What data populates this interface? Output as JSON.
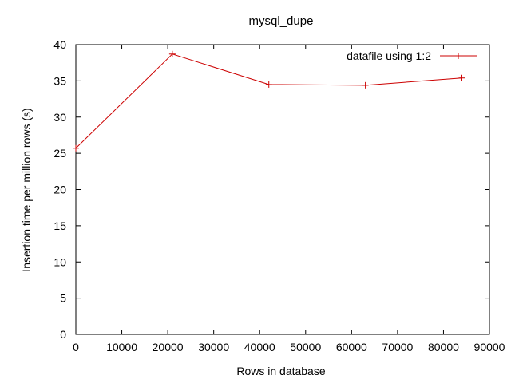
{
  "chart_data": {
    "type": "line",
    "title": "mysql_dupe",
    "xlabel": "Rows in database",
    "ylabel": "Insertion time per million rows (s)",
    "xlim": [
      0,
      90000
    ],
    "ylim": [
      0,
      40
    ],
    "xticks": [
      0,
      10000,
      20000,
      30000,
      40000,
      50000,
      60000,
      70000,
      80000,
      90000
    ],
    "yticks": [
      0,
      5,
      10,
      15,
      20,
      25,
      30,
      35,
      40
    ],
    "grid": false,
    "legend_position": "top-right",
    "series": [
      {
        "name": "datafile using 1:2",
        "color": "#cc0000",
        "marker": "plus",
        "x": [
          0,
          21000,
          42000,
          63000,
          84000
        ],
        "y": [
          25.7,
          38.7,
          34.5,
          34.4,
          35.4
        ]
      }
    ]
  }
}
